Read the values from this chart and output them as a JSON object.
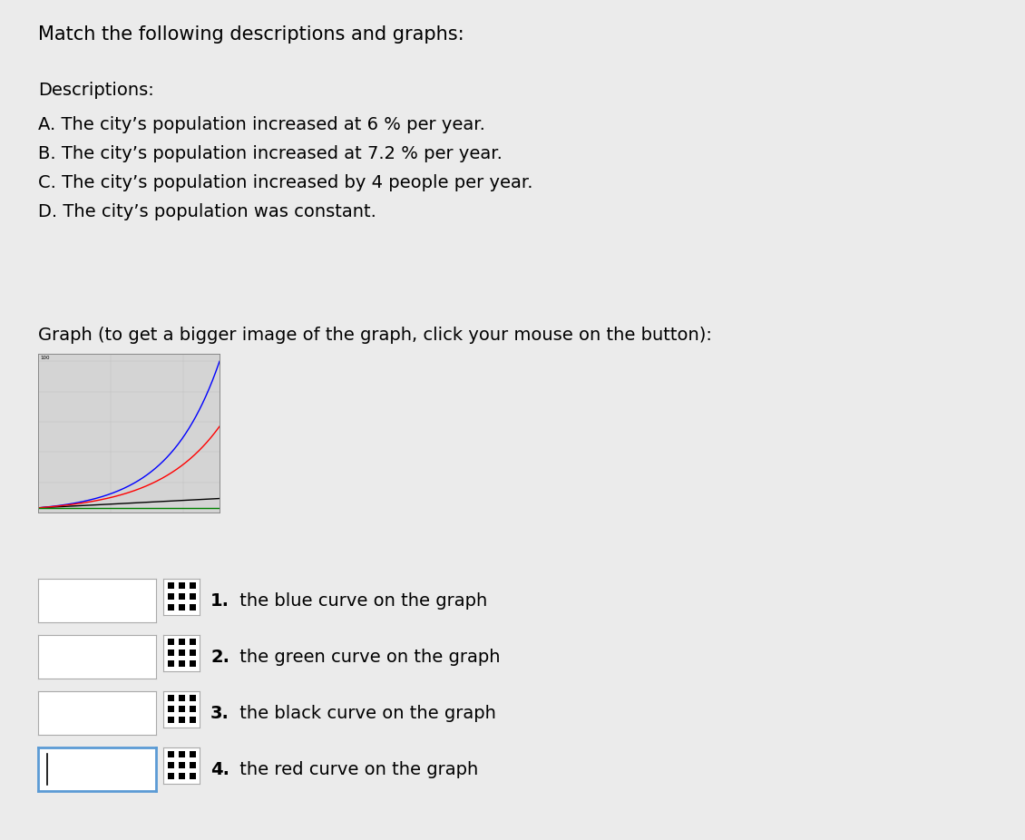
{
  "title_text": "Match the following descriptions and graphs:",
  "descriptions": [
    "Descriptions:",
    "A. The city’s population increased at 6 % per year.",
    "B. The city’s population increased at 7.2 % per year.",
    "C. The city’s population increased by 4 people per year.",
    "D. The city’s population was constant."
  ],
  "graph_label": "Graph (to get a bigger image of the graph, click your mouse on the button):",
  "items": [
    {
      "number": "1.",
      "text": " the blue curve on the graph"
    },
    {
      "number": "2.",
      "text": " the green curve on the graph"
    },
    {
      "number": "3.",
      "text": " the black curve on the graph"
    },
    {
      "number": "4.",
      "text": " the red curve on the graph"
    }
  ],
  "t_max": 50,
  "P0": 100,
  "rate_blue": 0.072,
  "rate_red": 0.06,
  "bg_color": "#ebebeb",
  "plot_bg_color": "#d4d4d4",
  "grid_color": "#c0c0c0",
  "font_size_title": 15,
  "font_size_desc": 14,
  "font_size_items": 14
}
